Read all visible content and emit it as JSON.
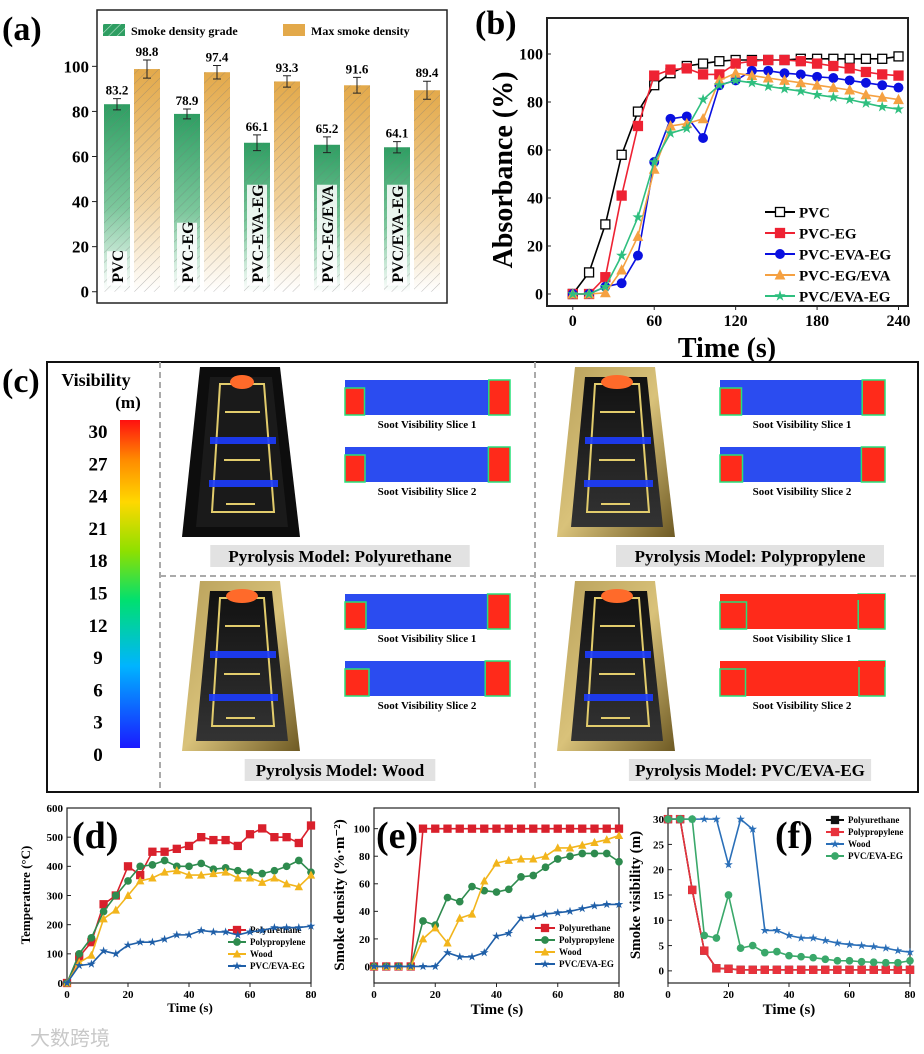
{
  "chart_data": [
    {
      "id": "a",
      "panel_label": "(a)",
      "type": "bar",
      "categories": [
        "PVC",
        "PVC-EG",
        "PVC-EVA-EG",
        "PVC-EG/EVA",
        "PVC/EVA-EG"
      ],
      "series": [
        {
          "name": "Smoke density grade",
          "values": [
            83.2,
            78.9,
            66.1,
            65.2,
            64.1
          ],
          "errors": [
            2.5,
            2.2,
            3.5,
            3.5,
            2.5
          ],
          "color": "#2e9e62"
        },
        {
          "name": "Max smoke density",
          "values": [
            98.8,
            97.4,
            93.3,
            91.6,
            89.4
          ],
          "errors": [
            4,
            3,
            2.5,
            3.5,
            4
          ],
          "color": "#e3a94a"
        }
      ],
      "value_labels": [
        "83.2",
        "78.9",
        "66.1",
        "65.2",
        "64.1",
        "98.8",
        "97.4",
        "93.3",
        "91.6",
        "89.4"
      ],
      "yticks": [
        "0",
        "20",
        "40",
        "60",
        "80",
        "100"
      ],
      "ylim": [
        -5,
        125
      ],
      "xlabel": "",
      "ylabel": "",
      "legend": "top"
    },
    {
      "id": "b",
      "panel_label": "(b)",
      "type": "line",
      "x": [
        0,
        12,
        24,
        36,
        48,
        60,
        72,
        84,
        96,
        108,
        120,
        132,
        144,
        156,
        168,
        180,
        192,
        204,
        216,
        228,
        240
      ],
      "series": [
        {
          "name": "PVC",
          "color": "#000000",
          "marker": "square-open",
          "values": [
            0,
            9,
            29,
            58,
            76,
            87,
            92,
            95,
            96,
            97,
            97.5,
            97.5,
            97.5,
            97.5,
            98,
            98,
            98,
            98,
            98,
            98,
            99
          ]
        },
        {
          "name": "PVC-EG",
          "color": "#ee2233",
          "marker": "square",
          "values": [
            0,
            0,
            7,
            41,
            70,
            91,
            93.5,
            94,
            91.5,
            91.5,
            96,
            97,
            97.5,
            97.5,
            97,
            96,
            95,
            94,
            92.5,
            91.5,
            91
          ]
        },
        {
          "name": "PVC-EVA-EG",
          "color": "#0a10e0",
          "marker": "circle",
          "values": [
            0,
            0,
            3,
            4.5,
            16,
            55,
            73,
            74,
            65,
            87,
            89,
            93,
            93,
            92,
            91.5,
            90.5,
            90,
            89,
            88,
            87,
            86
          ]
        },
        {
          "name": "PVC-EG/EVA",
          "color": "#f5a142",
          "marker": "triangle",
          "values": [
            0,
            0,
            0.5,
            10,
            24,
            52,
            70,
            71,
            73,
            89,
            92,
            91,
            90,
            89,
            88,
            87,
            86,
            85,
            83,
            82,
            81
          ]
        },
        {
          "name": "PVC/EVA-EG",
          "color": "#2fbf7f",
          "marker": "star",
          "values": [
            0,
            0,
            3,
            16,
            32,
            55,
            67,
            69,
            81,
            87,
            89,
            88,
            86.5,
            85.5,
            84.5,
            83,
            82,
            81,
            79.5,
            78,
            77
          ]
        }
      ],
      "xticks": [
        "0",
        "60",
        "120",
        "180",
        "240"
      ],
      "yticks": [
        "0",
        "20",
        "40",
        "60",
        "80",
        "100"
      ],
      "xlim": [
        -19,
        247
      ],
      "ylim": [
        -5,
        115
      ],
      "xlabel": "Time (s)",
      "ylabel": "Absorbance (%)",
      "legend": "bottom-right"
    },
    {
      "id": "d",
      "panel_label": "(d)",
      "type": "line",
      "x": [
        0,
        4,
        8,
        12,
        16,
        20,
        24,
        28,
        32,
        36,
        40,
        44,
        48,
        52,
        56,
        60,
        64,
        68,
        72,
        76,
        80
      ],
      "series": [
        {
          "name": "Polyurethane",
          "color": "#d9202c",
          "marker": "square",
          "values": [
            0,
            90,
            140,
            270,
            300,
            400,
            370,
            450,
            450,
            460,
            470,
            500,
            490,
            490,
            470,
            510,
            530,
            500,
            500,
            480,
            540
          ]
        },
        {
          "name": "Polypropylene",
          "color": "#2e8b4e",
          "marker": "circle",
          "values": [
            0,
            100,
            155,
            245,
            300,
            350,
            400,
            405,
            420,
            400,
            400,
            410,
            390,
            395,
            385,
            380,
            375,
            385,
            400,
            420,
            380
          ]
        },
        {
          "name": "Wood",
          "color": "#f2b51c",
          "marker": "triangle",
          "values": [
            0,
            70,
            95,
            220,
            250,
            300,
            350,
            360,
            380,
            385,
            370,
            370,
            375,
            380,
            360,
            360,
            345,
            360,
            340,
            330,
            370
          ]
        },
        {
          "name": "PVC/EVA-EG",
          "color": "#1f5fa8",
          "marker": "star",
          "values": [
            0,
            60,
            65,
            110,
            100,
            130,
            140,
            140,
            150,
            165,
            165,
            180,
            175,
            175,
            165,
            175,
            180,
            190,
            190,
            190,
            195
          ]
        }
      ],
      "xticks": [
        "0",
        "20",
        "40",
        "60",
        "80"
      ],
      "yticks": [
        "0",
        "100",
        "200",
        "300",
        "400",
        "500",
        "600"
      ],
      "xlim": [
        0,
        80
      ],
      "ylim": [
        0,
        600
      ],
      "xlabel": "Time (s)",
      "ylabel": "Temperature (°C)",
      "legend": "bottom-right"
    },
    {
      "id": "e",
      "panel_label": "(e)",
      "type": "line",
      "x": [
        0,
        4,
        8,
        12,
        16,
        20,
        24,
        28,
        32,
        36,
        40,
        44,
        48,
        52,
        56,
        60,
        64,
        68,
        72,
        76,
        80
      ],
      "series": [
        {
          "name": "Polyurethane",
          "color": "#d9202c",
          "marker": "square",
          "values": [
            0,
            0,
            0,
            0,
            100,
            100,
            100,
            100,
            100,
            100,
            100,
            100,
            100,
            100,
            100,
            100,
            100,
            100,
            100,
            100,
            100
          ]
        },
        {
          "name": "Polypropylene",
          "color": "#2e8b4e",
          "marker": "circle",
          "values": [
            0,
            0,
            0,
            0,
            33,
            30,
            50,
            47,
            58,
            55,
            54,
            56,
            65,
            66,
            72,
            78,
            80,
            82,
            82,
            82,
            76
          ]
        },
        {
          "name": "Wood",
          "color": "#f2b51c",
          "marker": "triangle",
          "values": [
            0,
            0,
            0,
            0,
            20,
            28,
            17,
            35,
            38,
            62,
            75,
            77,
            78,
            78,
            80,
            86,
            86,
            88,
            90,
            92,
            95
          ]
        },
        {
          "name": "PVC/EVA-EG",
          "color": "#1f5fa8",
          "marker": "star",
          "values": [
            0,
            0,
            0,
            0,
            0,
            0,
            10,
            7,
            7,
            10,
            22,
            24,
            35,
            36,
            38,
            39,
            40,
            42,
            44,
            45,
            45
          ]
        }
      ],
      "xticks": [
        "0",
        "20",
        "40",
        "60",
        "80"
      ],
      "yticks": [
        "0",
        "20",
        "40",
        "60",
        "80",
        "100"
      ],
      "xlim": [
        0,
        80
      ],
      "ylim": [
        -12,
        115
      ],
      "xlabel": "Time (s)",
      "ylabel": "Smoke density (%·m⁻²)",
      "legend": "bottom-right"
    },
    {
      "id": "f",
      "panel_label": "(f)",
      "type": "line",
      "x": [
        0,
        4,
        8,
        12,
        16,
        20,
        24,
        28,
        32,
        36,
        40,
        44,
        48,
        52,
        56,
        60,
        64,
        68,
        72,
        76,
        80
      ],
      "series": [
        {
          "name": "Polyurethane",
          "color": "#111111",
          "marker": "square",
          "values": [
            30,
            30,
            16,
            4,
            0.5,
            0.4,
            0.2,
            0.2,
            0.2,
            0.2,
            0.2,
            0.2,
            0.2,
            0.2,
            0.2,
            0.2,
            0.2,
            0.2,
            0.2,
            0.2,
            0.2
          ]
        },
        {
          "name": "Polypropylene",
          "color": "#e8323c",
          "marker": "square",
          "values": [
            30,
            30,
            16,
            4,
            0.5,
            0.4,
            0.2,
            0.2,
            0.2,
            0.2,
            0.2,
            0.2,
            0.2,
            0.2,
            0.2,
            0.2,
            0.2,
            0.2,
            0.2,
            0.2,
            0.2
          ]
        },
        {
          "name": "Wood",
          "color": "#2a6fb8",
          "marker": "star",
          "values": [
            30,
            30,
            30,
            30,
            30,
            21,
            30,
            28,
            8,
            8,
            7,
            6.5,
            6.5,
            6,
            5.5,
            5.2,
            5,
            4.8,
            4.5,
            4,
            3.7
          ]
        },
        {
          "name": "PVC/EVA-EG",
          "color": "#3aa86a",
          "marker": "circle",
          "values": [
            30,
            30,
            30,
            7,
            6.5,
            15,
            4.5,
            5,
            3.6,
            3.8,
            3,
            2.8,
            2.6,
            2.3,
            2,
            2,
            1.8,
            1.7,
            1.6,
            1.6,
            2
          ]
        }
      ],
      "xticks": [
        "0",
        "20",
        "40",
        "60",
        "80"
      ],
      "yticks": [
        "0",
        "5",
        "10",
        "15",
        "20",
        "25",
        "30"
      ],
      "xlim": [
        0,
        80
      ],
      "ylim": [
        -2.4,
        32.2
      ],
      "xlabel": "Time (s)",
      "ylabel": "Smoke visibility (m)",
      "legend": "top-right"
    }
  ],
  "panel_c": {
    "panel_label": "(c)",
    "colorbar": {
      "title": "Visibility",
      "unit": "(m)",
      "ticks": [
        "30",
        "27",
        "24",
        "21",
        "18",
        "15",
        "12",
        "9",
        "6",
        "3",
        "0"
      ]
    },
    "models": [
      {
        "title": "Pyrolysis Model: Polyurethane",
        "slice1": "Soot Visibility Slice 1",
        "slice2": "Soot Visibility Slice 2"
      },
      {
        "title": "Pyrolysis Model: Polypropylene",
        "slice1": "Soot Visibility Slice 1",
        "slice2": "Soot Visibility Slice 2"
      },
      {
        "title": "Pyrolysis Model: Wood",
        "slice1": "Soot Visibility Slice 1",
        "slice2": "Soot Visibility Slice 2"
      },
      {
        "title": "Pyrolysis Model: PVC/EVA-EG",
        "slice1": "Soot Visibility Slice 1",
        "slice2": "Soot Visibility Slice 2"
      }
    ]
  },
  "watermark": "大数跨境"
}
